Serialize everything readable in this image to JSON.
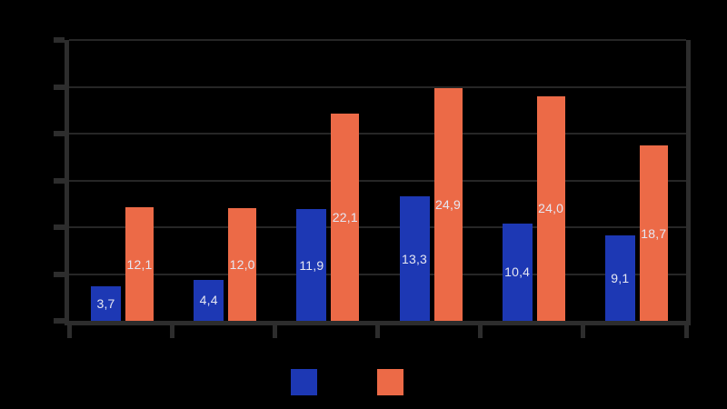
{
  "colors": {
    "background": "#000000",
    "axis": "#2d2d2d",
    "grid": "#262626",
    "bar_label_text": "#e6e7f2",
    "series_blue": "#1d38b4",
    "series_orange": "#ec6a47"
  },
  "chart_data": {
    "type": "bar",
    "title": "",
    "xlabel": "",
    "ylabel": "",
    "categories": [
      "",
      "",
      "",
      "",
      "",
      ""
    ],
    "series": [
      {
        "name": "",
        "color": "#1d38b4",
        "values": [
          3.7,
          4.4,
          11.9,
          13.3,
          10.4,
          9.1
        ],
        "labels": [
          "3,7",
          "4,4",
          "11,9",
          "13,3",
          "10,4",
          "9,1"
        ]
      },
      {
        "name": "",
        "color": "#ec6a47",
        "values": [
          12.1,
          12.0,
          22.1,
          24.9,
          24.0,
          18.7
        ],
        "labels": [
          "12,1",
          "12,0",
          "22,1",
          "24,9",
          "24,0",
          "18,7"
        ]
      }
    ],
    "ylim": [
      0,
      30
    ],
    "y_gridline_step": 5,
    "grid": true,
    "legend_position": "bottom",
    "value_label_decimal_separator": ","
  },
  "legend": {
    "items": [
      {
        "label": "",
        "color": "#1d38b4"
      },
      {
        "label": "",
        "color": "#ec6a47"
      }
    ]
  }
}
